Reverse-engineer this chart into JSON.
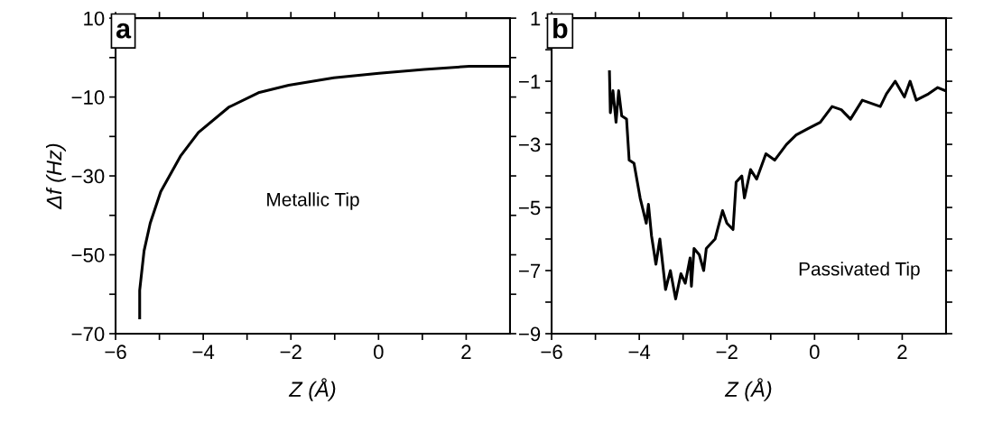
{
  "chart_data": [
    {
      "type": "line",
      "xlabel": "Z (Å)",
      "ylabel": "Δf (Hz)",
      "annotations": [
        "a",
        "Metallic Tip"
      ],
      "series": [
        {
          "color": "#000000",
          "x": [
            -5.45,
            -5.45,
            -5.35,
            -5.21,
            -4.97,
            -4.52,
            -4.11,
            -3.42,
            -2.74,
            -2.05,
            -1.02,
            0.01,
            1.04,
            2.07,
            2.96
          ],
          "values": [
            -66,
            -59,
            -49,
            -42,
            -34,
            -25,
            -19,
            -12.6,
            -8.9,
            -7,
            -5.1,
            -4,
            -3,
            -2.2,
            -2.2
          ]
        }
      ],
      "xlim": [
        -6,
        3
      ],
      "xticks": [
        -6,
        {
          "value": -5,
          "label": null
        },
        -4,
        {
          "value": -3,
          "label": null
        },
        -2,
        {
          "value": -1,
          "label": null
        },
        0,
        {
          "value": 1,
          "label": null
        },
        2
      ],
      "ylim": [
        -70,
        10
      ],
      "yticks": [
        -70,
        {
          "value": -60,
          "label": null
        },
        -50,
        {
          "value": -40,
          "label": null
        },
        -30,
        {
          "value": -20,
          "label": null
        },
        -10,
        {
          "value": 0,
          "label": null
        },
        10
      ],
      "grid": false,
      "legend": false,
      "marker": "none",
      "line_style": "solid"
    },
    {
      "type": "line",
      "xlabel": "Z (Å)",
      "annotations": [
        "b",
        "Passivated Tip"
      ],
      "series": [
        {
          "color": "#000000",
          "x": [
            -4.68,
            -4.66,
            -4.6,
            -4.53,
            -4.47,
            -4.4,
            -4.29,
            -4.23,
            -4.12,
            -3.98,
            -3.84,
            -3.79,
            -3.72,
            -3.62,
            -3.53,
            -3.4,
            -3.29,
            -3.17,
            -3.05,
            -2.95,
            -2.84,
            -2.81,
            -2.75,
            -2.63,
            -2.53,
            -2.47,
            -2.27,
            -2.1,
            -2.0,
            -1.86,
            -1.79,
            -1.66,
            -1.6,
            -1.46,
            -1.32,
            -1.11,
            -0.91,
            -0.64,
            -0.42,
            -0.15,
            0.13,
            0.4,
            0.61,
            0.82,
            1.09,
            1.5,
            1.64,
            1.84,
            2.05,
            2.18,
            2.32,
            2.6,
            2.81,
            2.98
          ],
          "values": [
            -0.7,
            -2.0,
            -1.3,
            -2.3,
            -1.3,
            -2.1,
            -2.2,
            -3.5,
            -3.6,
            -4.7,
            -5.5,
            -4.9,
            -5.9,
            -6.8,
            -6.0,
            -7.6,
            -7.0,
            -7.9,
            -7.1,
            -7.4,
            -6.6,
            -7.5,
            -6.3,
            -6.5,
            -7.0,
            -6.3,
            -6.0,
            -5.1,
            -5.5,
            -5.7,
            -4.2,
            -4.0,
            -4.7,
            -3.8,
            -4.1,
            -3.3,
            -3.5,
            -3.0,
            -2.7,
            -2.5,
            -2.3,
            -1.8,
            -1.9,
            -2.2,
            -1.6,
            -1.8,
            -1.4,
            -1.0,
            -1.5,
            -1.0,
            -1.6,
            -1.4,
            -1.2,
            -1.3
          ]
        }
      ],
      "xlim": [
        -6,
        3
      ],
      "xticks": [
        -6,
        {
          "value": -5,
          "label": null
        },
        -4,
        {
          "value": -3,
          "label": null
        },
        -2,
        {
          "value": -1,
          "label": null
        },
        0,
        {
          "value": 1,
          "label": null
        },
        2
      ],
      "ylim": [
        -9,
        1
      ],
      "yticks": [
        -9,
        {
          "value": -8,
          "label": null
        },
        -7,
        {
          "value": -6,
          "label": null
        },
        -5,
        {
          "value": -4,
          "label": null
        },
        -3,
        {
          "value": -2,
          "label": null
        },
        -1,
        {
          "value": 0,
          "label": null
        },
        1
      ],
      "grid": false,
      "legend": false,
      "marker": "none",
      "line_style": "solid"
    }
  ]
}
